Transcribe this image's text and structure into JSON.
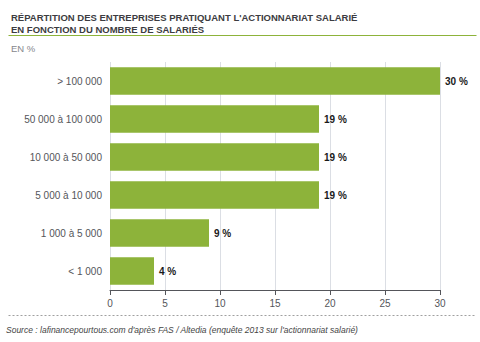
{
  "chart_data": {
    "type": "bar",
    "orientation": "horizontal",
    "title": "RÉPARTITION DES ENTREPRISES PRATIQUANT L'ACTIONNARIAT SALARIÉ\nEN FONCTION DU NOMBRE DE SALARIÉS",
    "subtitle": "EN %",
    "annotations": [
      "Source : lafinancepourtous.com d'après FAS / Altedia (enquête 2013 sur l'actionnariat salarié)"
    ],
    "categories": [
      "< 1 000",
      "1 000 à 5 000",
      "5 000 à 10 000",
      "10 000 à 50 000",
      "50 000 à 100 000",
      "> 100 000"
    ],
    "values": [
      4,
      9,
      19,
      19,
      19,
      30
    ],
    "value_labels": [
      "4 %",
      "9 %",
      "19 %",
      "19 %",
      "19 %",
      "30 %"
    ],
    "data_labels": true,
    "color": "#8db33a",
    "xlim": [
      0,
      30
    ],
    "xticks": [
      0,
      5,
      10,
      15,
      20,
      25,
      30
    ],
    "grid": true
  }
}
